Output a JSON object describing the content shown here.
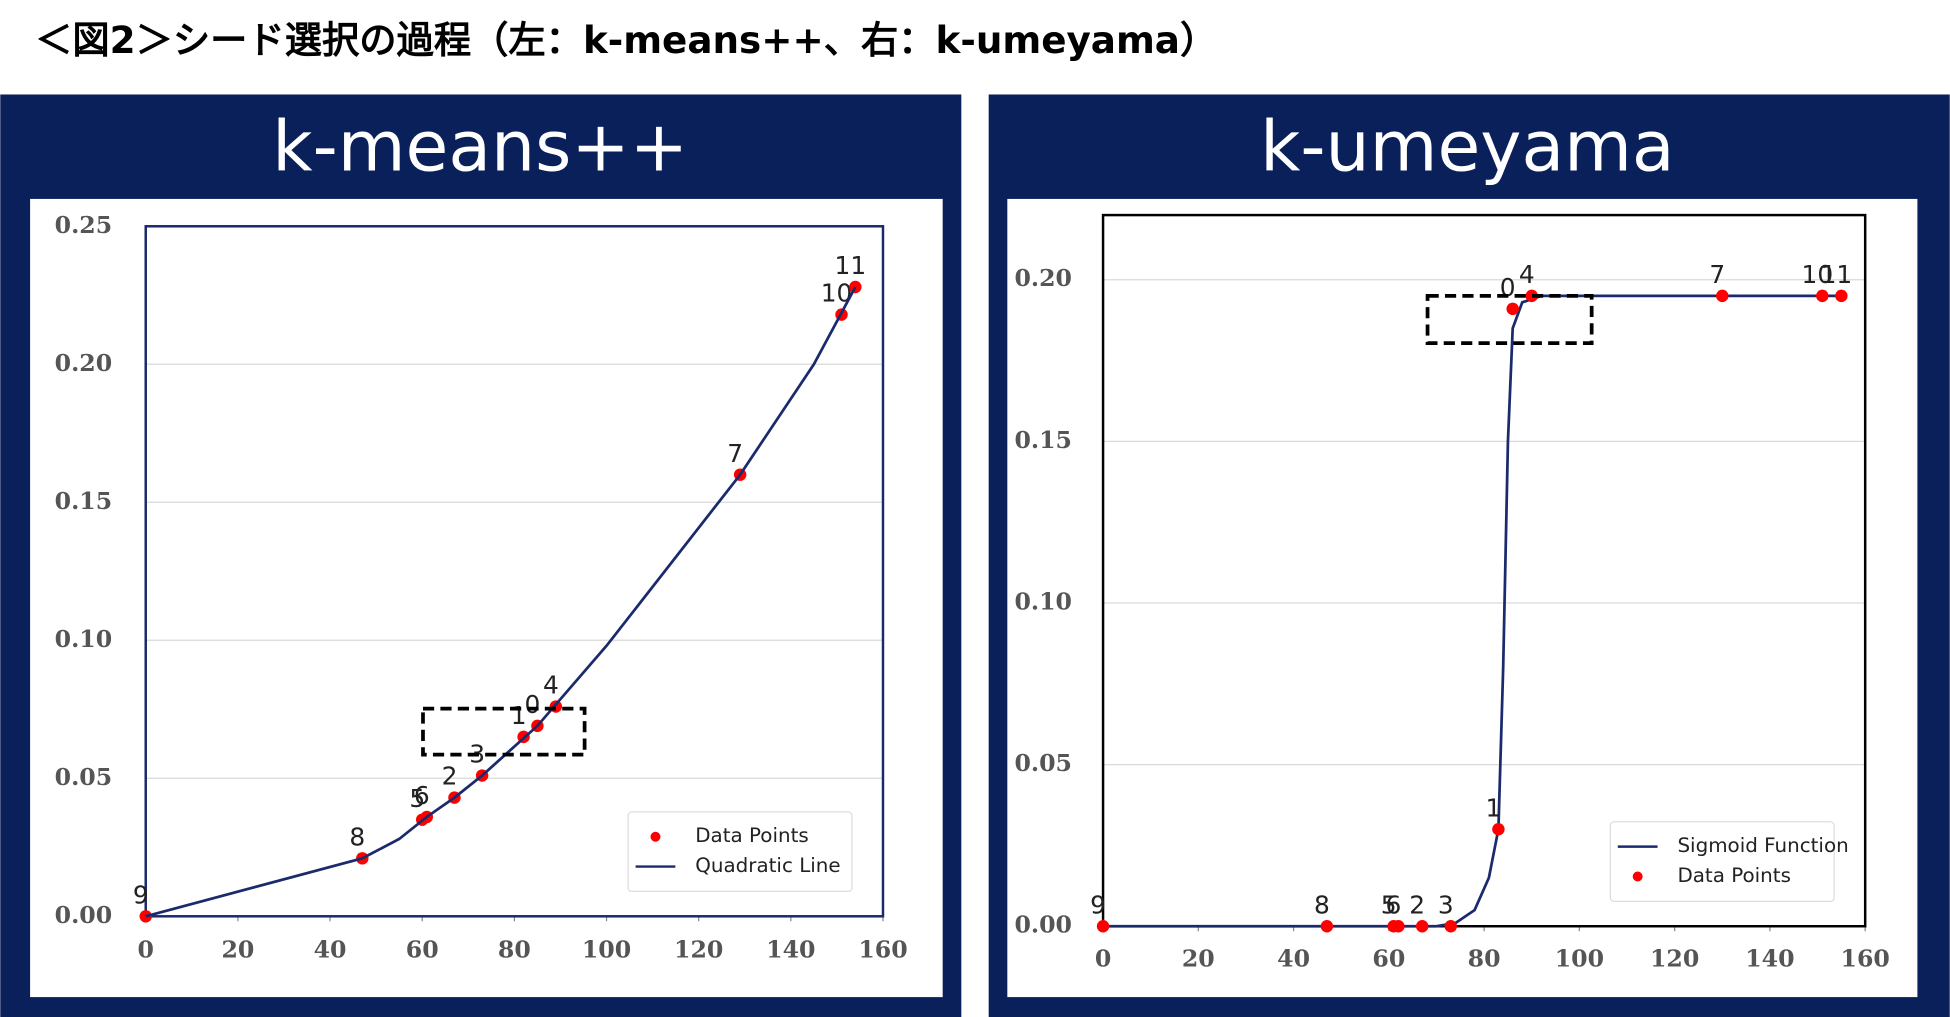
{
  "header": {
    "title": "＜図2＞シード選択の過程（左：k-means++、右：k-umeyama）"
  },
  "chart_data": [
    {
      "type": "scatter",
      "title": "k-means++",
      "xlim": [
        0,
        160
      ],
      "xticks": [
        0,
        20,
        40,
        60,
        80,
        100,
        120,
        140,
        160
      ],
      "ylim": [
        0,
        0.25
      ],
      "yticks": [
        {
          "value": 0,
          "label": "0.00"
        },
        {
          "value": 0.05,
          "label": "0.05"
        },
        {
          "value": 0.1,
          "label": "0.10"
        },
        {
          "value": 0.15,
          "label": "0.15"
        },
        {
          "value": 0.2,
          "label": "0.20"
        },
        {
          "value": 0.25,
          "label": "0.25"
        }
      ],
      "grid": true,
      "legend": "lower right",
      "series": [
        {
          "name": "Data Points",
          "kind": "points",
          "color": "#ff0000",
          "x": [
            85,
            82,
            67,
            73,
            89,
            60,
            61,
            129,
            47,
            0,
            151,
            154
          ],
          "values": [
            0.069,
            0.065,
            0.043,
            0.051,
            0.076,
            0.035,
            0.036,
            0.16,
            0.021,
            0,
            0.218,
            0.228
          ],
          "point_labels": [
            "0",
            "1",
            "2",
            "3",
            "4",
            "5",
            "6",
            "7",
            "8",
            "9",
            "10",
            "11"
          ]
        },
        {
          "name": "Quadratic Line",
          "kind": "line",
          "color": "#1a2a6c",
          "x": [
            0,
            47,
            55,
            61,
            67,
            73,
            85,
            100,
            129,
            145,
            154
          ],
          "values": [
            0,
            0.021,
            0.028,
            0.036,
            0.043,
            0.051,
            0.069,
            0.098,
            0.16,
            0.2,
            0.228
          ]
        }
      ]
    },
    {
      "type": "scatter",
      "title": "k-umeyama",
      "xlim": [
        0,
        160
      ],
      "xticks": [
        0,
        20,
        40,
        60,
        80,
        100,
        120,
        140,
        160
      ],
      "ylim": [
        0,
        0.22
      ],
      "yticks": [
        {
          "value": 0,
          "label": "0.00"
        },
        {
          "value": 0.05,
          "label": "0.05"
        },
        {
          "value": 0.1,
          "label": "0.10"
        },
        {
          "value": 0.15,
          "label": "0.15"
        },
        {
          "value": 0.2,
          "label": "0.20"
        }
      ],
      "grid": true,
      "legend": "lower right",
      "series": [
        {
          "name": "Sigmoid Function",
          "kind": "line",
          "color": "#1a2a6c",
          "x": [
            0,
            70,
            74,
            78,
            81,
            83,
            84,
            85,
            86,
            88,
            92,
            155
          ],
          "values": [
            0,
            0,
            0.001,
            0.005,
            0.015,
            0.03,
            0.08,
            0.15,
            0.185,
            0.193,
            0.195,
            0.195
          ]
        },
        {
          "name": "Data Points",
          "kind": "points",
          "color": "#ff0000",
          "x": [
            86,
            83,
            67,
            73,
            90,
            61,
            62,
            130,
            47,
            0,
            151,
            155
          ],
          "values": [
            0.191,
            0.03,
            0,
            0,
            0.195,
            0,
            0,
            0.195,
            0,
            0,
            0.195,
            0.195
          ],
          "point_labels": [
            "0",
            "1",
            "2",
            "3",
            "4",
            "5",
            "6",
            "7",
            "8",
            "9",
            "10",
            "11"
          ]
        }
      ]
    }
  ]
}
